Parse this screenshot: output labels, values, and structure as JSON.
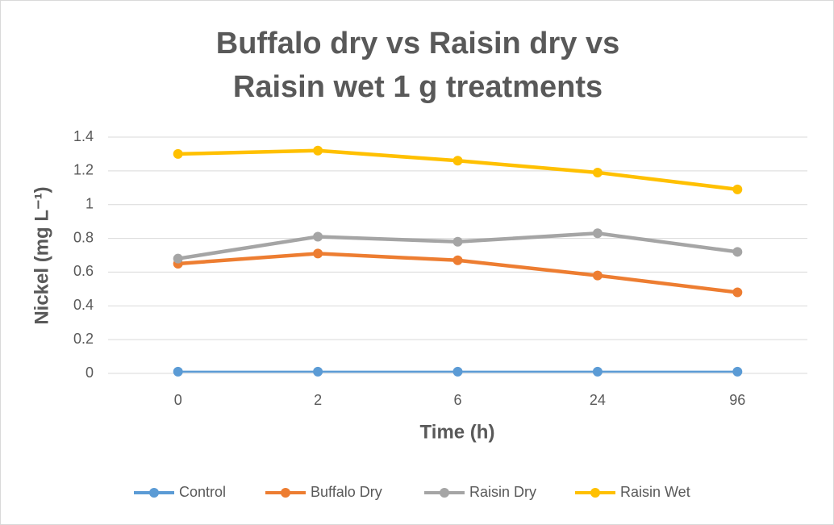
{
  "chart_data": {
    "type": "line",
    "title": "Buffalo dry vs Raisin dry vs Raisin wet 1 g treatments",
    "x_label": "Time (h)",
    "y_label": "Nickel (mg L⁻¹)",
    "categories": [
      "0",
      "2",
      "6",
      "24",
      "96"
    ],
    "series": [
      {
        "name": "Control",
        "color": "#5b9bd5",
        "values": [
          0.01,
          0.01,
          0.01,
          0.01,
          0.01
        ]
      },
      {
        "name": "Buffalo Dry",
        "color": "#ed7d31",
        "values": [
          0.65,
          0.71,
          0.67,
          0.58,
          0.48
        ]
      },
      {
        "name": "Raisin Dry",
        "color": "#a5a5a5",
        "values": [
          0.68,
          0.81,
          0.78,
          0.83,
          0.72
        ]
      },
      {
        "name": "Raisin Wet",
        "color": "#ffc000",
        "values": [
          1.3,
          1.32,
          1.26,
          1.19,
          1.09
        ]
      }
    ],
    "ylim": [
      0,
      1.4
    ],
    "yticks": [
      0,
      0.2,
      0.4,
      0.6,
      0.8,
      1,
      1.2,
      1.4
    ],
    "grid": true,
    "legend": "bottom"
  }
}
